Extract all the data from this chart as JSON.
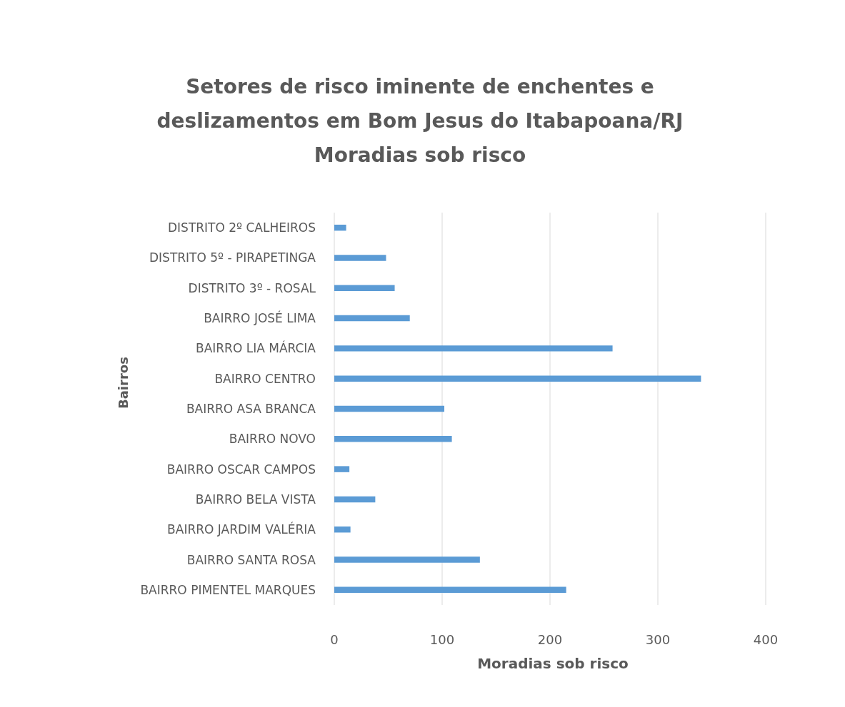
{
  "chart_data": {
    "type": "bar",
    "orientation": "horizontal",
    "title": "Setores de risco iminente de enchentes e\ndeslizamentos  em Bom Jesus do Itabapoana/RJ\nMoradias sob risco",
    "xlabel": "Moradias sob risco",
    "ylabel": "Bairros",
    "categories": [
      "DISTRITO 2º CALHEIROS",
      "DISTRITO 5º - PIRAPETINGA",
      "DISTRITO 3º - ROSAL",
      "BAIRRO JOSÉ LIMA",
      "BAIRRO LIA MÁRCIA",
      "BAIRRO CENTRO",
      "BAIRRO ASA BRANCA",
      "BAIRRO NOVO",
      "BAIRRO OSCAR CAMPOS",
      "BAIRRO BELA VISTA",
      "BAIRRO JARDIM VALÉRIA",
      "BAIRRO SANTA ROSA",
      "BAIRRO PIMENTEL MARQUES"
    ],
    "values": [
      11,
      48,
      56,
      70,
      258,
      340,
      102,
      109,
      14,
      38,
      15,
      135,
      215
    ],
    "color": "#5b9bd5",
    "xlim": [
      0,
      400
    ],
    "xticks": [
      0,
      100,
      200,
      300,
      400
    ],
    "grid": "x"
  }
}
